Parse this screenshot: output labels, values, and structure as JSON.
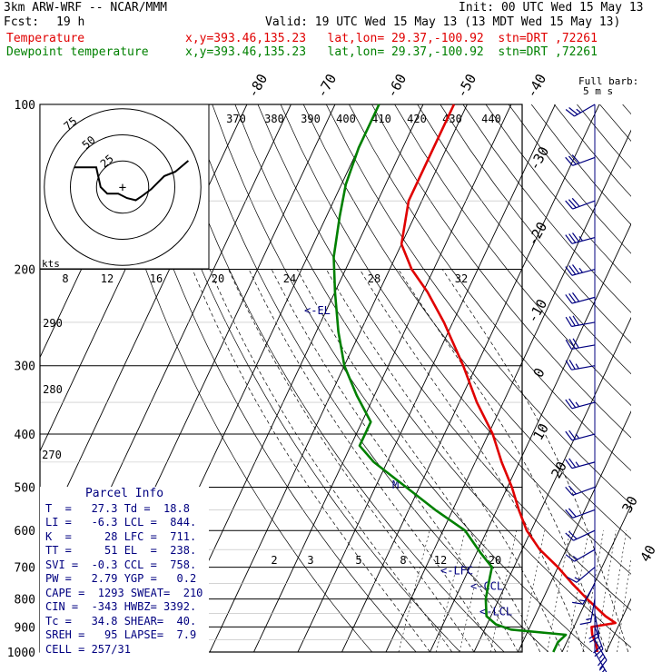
{
  "header": {
    "model": "3km ARW-WRF -- NCAR/MMM",
    "init": "Init: 00 UTC Wed 15 May 13",
    "fcst_label": "Fcst:",
    "fcst_hour": "19 h",
    "valid": "Valid: 19 UTC Wed 15 May 13 (13 MDT Wed 15 May 13)",
    "temp_label": "Temperature",
    "dew_label": "Dewpoint temperature",
    "loc_line": "x,y=393.46,135.23   lat,lon= 29.37,-100.92  stn=DRT ,72261"
  },
  "barb_key": {
    "line1": "Full barb:",
    "line2": "5 m s"
  },
  "hodograph": {
    "units": "kts",
    "rings": [
      {
        "label": "25",
        "kts": 25
      },
      {
        "label": "50",
        "kts": 50
      },
      {
        "label": "75",
        "kts": 75
      }
    ],
    "trace_u_v": [
      [
        -22,
        9
      ],
      [
        -12,
        9
      ],
      [
        -10,
        0
      ],
      [
        -7,
        -3
      ],
      [
        -2,
        -3
      ],
      [
        2,
        -5
      ],
      [
        6,
        -6
      ],
      [
        9,
        -4
      ],
      [
        13,
        -1
      ],
      [
        16,
        2
      ],
      [
        19,
        5
      ],
      [
        24,
        7
      ],
      [
        30,
        12
      ]
    ]
  },
  "parcel_info": {
    "title": "Parcel Info",
    "rows": [
      "T  =   27.3 Td =  18.8",
      "LI =   -6.3 LCL =  844.",
      "K  =     28 LFC =  711.",
      "TT =     51 EL  =  238.",
      "SVI =  -0.3 CCL =  758.",
      "PW =   2.79 YGP =   0.2",
      "CAPE =  1293 SWEAT=  210",
      "CIN =  -343 HWBZ= 3392.",
      "Tc =   34.8 SHEAR=  40.",
      "SREH =   95 LAPSE=  7.9",
      "CELL = 257/31"
    ]
  },
  "chart_data": {
    "type": "line",
    "title": "",
    "y_axis": "pressure (hPa), log scale",
    "ylim": [
      1000,
      100
    ],
    "isobars": [
      100,
      200,
      300,
      400,
      500,
      600,
      700,
      800,
      900,
      1000
    ],
    "isotherm_labels": [
      "-80",
      "-70",
      "-60",
      "-50",
      "-40",
      "-30",
      "-20",
      "-10",
      "0",
      "10",
      "20",
      "30",
      "40"
    ],
    "dry_adiabat_labels": [
      "270",
      "280",
      "290"
    ],
    "theta_e_labels": [
      "370",
      "380",
      "390",
      "400",
      "410",
      "420",
      "430",
      "440"
    ],
    "mixing_ratio_top_labels": [
      "8",
      "12",
      "16",
      "20",
      "24",
      "28",
      "32"
    ],
    "mixing_ratio_bottom_labels": [
      "2",
      "3",
      "5",
      "8",
      "12",
      "20"
    ],
    "level_marks": [
      {
        "label": "<-EL",
        "p": 238
      },
      {
        "label": "<-LFC",
        "p": 711
      },
      {
        "label": "<-CCL",
        "p": 758
      },
      {
        "label": "<-LCL",
        "p": 844
      },
      {
        "label": "M",
        "p": 495
      }
    ],
    "series": [
      {
        "name": "Temperature",
        "color": "#e00000",
        "points": [
          [
            1000,
            28
          ],
          [
            970,
            27
          ],
          [
            930,
            25
          ],
          [
            900,
            24
          ],
          [
            885,
            29
          ],
          [
            860,
            26
          ],
          [
            800,
            20
          ],
          [
            750,
            15
          ],
          [
            700,
            10
          ],
          [
            650,
            4
          ],
          [
            600,
            -1
          ],
          [
            550,
            -5
          ],
          [
            500,
            -9
          ],
          [
            450,
            -14
          ],
          [
            400,
            -19
          ],
          [
            350,
            -26
          ],
          [
            300,
            -33
          ],
          [
            250,
            -42
          ],
          [
            220,
            -49
          ],
          [
            200,
            -55
          ],
          [
            180,
            -60
          ],
          [
            150,
            -63
          ],
          [
            125,
            -63
          ],
          [
            100,
            -63
          ]
        ]
      },
      {
        "name": "Dewpoint temperature",
        "color": "#008000",
        "points": [
          [
            1000,
            18
          ],
          [
            960,
            18
          ],
          [
            930,
            19
          ],
          [
            910,
            6
          ],
          [
            890,
            2
          ],
          [
            860,
            -1
          ],
          [
            800,
            -3
          ],
          [
            750,
            -4
          ],
          [
            700,
            -5
          ],
          [
            660,
            -9
          ],
          [
            600,
            -15
          ],
          [
            550,
            -24
          ],
          [
            500,
            -33
          ],
          [
            450,
            -43
          ],
          [
            420,
            -48
          ],
          [
            380,
            -48
          ],
          [
            340,
            -54
          ],
          [
            300,
            -60
          ],
          [
            260,
            -65
          ],
          [
            220,
            -70
          ],
          [
            190,
            -74
          ],
          [
            160,
            -77
          ],
          [
            140,
            -79
          ],
          [
            120,
            -80
          ],
          [
            100,
            -80
          ]
        ]
      }
    ],
    "wind_barbs_kts": [
      {
        "p": 100,
        "spd": 25,
        "dir": 240
      },
      {
        "p": 125,
        "spd": 30,
        "dir": 250
      },
      {
        "p": 150,
        "spd": 30,
        "dir": 250
      },
      {
        "p": 175,
        "spd": 35,
        "dir": 255
      },
      {
        "p": 200,
        "spd": 35,
        "dir": 255
      },
      {
        "p": 225,
        "spd": 30,
        "dir": 255
      },
      {
        "p": 250,
        "spd": 30,
        "dir": 260
      },
      {
        "p": 275,
        "spd": 30,
        "dir": 260
      },
      {
        "p": 300,
        "spd": 25,
        "dir": 260
      },
      {
        "p": 350,
        "spd": 25,
        "dir": 255
      },
      {
        "p": 400,
        "spd": 25,
        "dir": 255
      },
      {
        "p": 450,
        "spd": 25,
        "dir": 255
      },
      {
        "p": 500,
        "spd": 20,
        "dir": 250
      },
      {
        "p": 550,
        "spd": 20,
        "dir": 250
      },
      {
        "p": 600,
        "spd": 20,
        "dir": 245
      },
      {
        "p": 650,
        "spd": 15,
        "dir": 240
      },
      {
        "p": 700,
        "spd": 15,
        "dir": 230
      },
      {
        "p": 750,
        "spd": 15,
        "dir": 210
      },
      {
        "p": 800,
        "spd": 15,
        "dir": 190
      },
      {
        "p": 850,
        "spd": 20,
        "dir": 170
      },
      {
        "p": 900,
        "spd": 20,
        "dir": 160
      },
      {
        "p": 950,
        "spd": 25,
        "dir": 150
      },
      {
        "p": 1000,
        "spd": 25,
        "dir": 150
      }
    ]
  }
}
